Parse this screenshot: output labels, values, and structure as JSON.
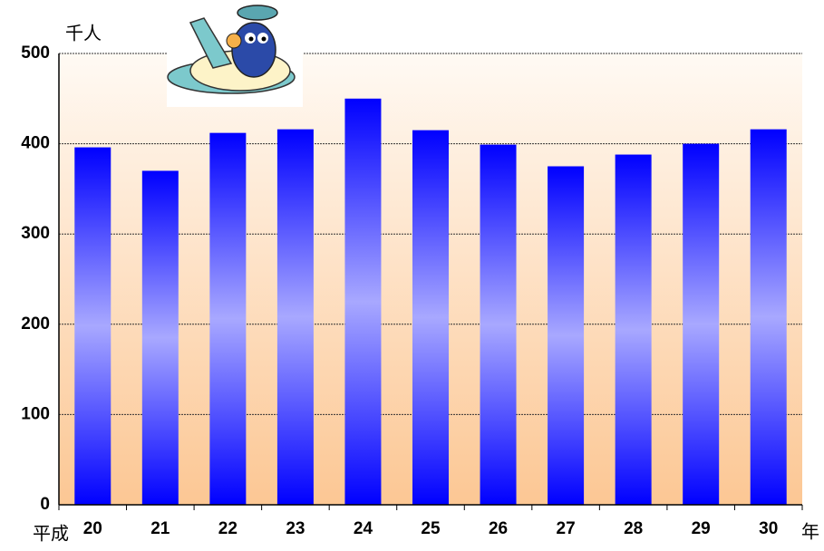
{
  "chart_data": {
    "type": "bar",
    "y_label": "千人",
    "x_prefix": "平成",
    "x_suffix": "年",
    "categories": [
      "20",
      "21",
      "22",
      "23",
      "24",
      "25",
      "26",
      "27",
      "28",
      "29",
      "30"
    ],
    "values": [
      396,
      370,
      412,
      416,
      450,
      415,
      399,
      375,
      388,
      400,
      416
    ],
    "color": "#0000ff",
    "ylim": [
      0,
      500
    ],
    "yticks": [
      0,
      100,
      200,
      300,
      400,
      500
    ],
    "grid": true
  }
}
